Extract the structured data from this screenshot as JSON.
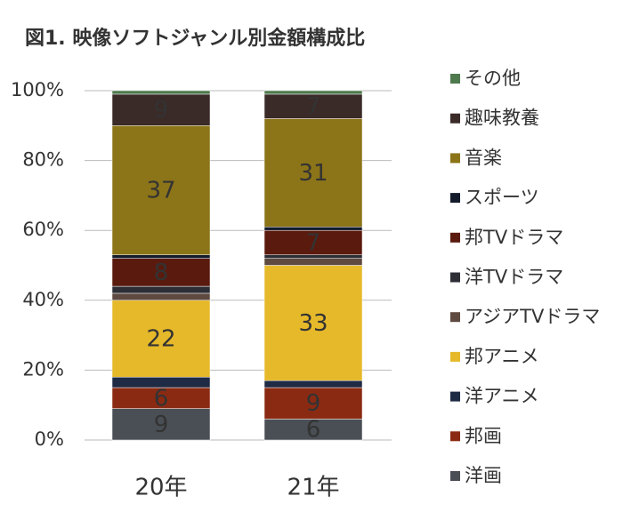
{
  "chart_data": {
    "type": "stacked-bar",
    "title": "図1. 映像ソフトジャンル別金額構成比",
    "categories": [
      "20年",
      "21年"
    ],
    "ylim": [
      0,
      100
    ],
    "yticks": [
      {
        "value": 0,
        "label": "0%"
      },
      {
        "value": 20,
        "label": "20%"
      },
      {
        "value": 40,
        "label": "40%"
      },
      {
        "value": 60,
        "label": "60%"
      },
      {
        "value": 80,
        "label": "80%"
      },
      {
        "value": 100,
        "label": "100%"
      }
    ],
    "grid": true,
    "legend": "right",
    "series": [
      {
        "name": "洋画",
        "color": "#4a4f55",
        "values": [
          9,
          6
        ]
      },
      {
        "name": "邦画",
        "color": "#8b2a12",
        "values": [
          6,
          9
        ]
      },
      {
        "name": "洋アニメ",
        "color": "#1f2a44",
        "values": [
          3,
          2
        ]
      },
      {
        "name": "邦アニメ",
        "color": "#e6b92a",
        "values": [
          22,
          33
        ]
      },
      {
        "name": "アジアTVドラマ",
        "color": "#5e4a40",
        "values": [
          2,
          2
        ]
      },
      {
        "name": "洋TVドラマ",
        "color": "#2d2e36",
        "values": [
          2,
          1
        ]
      },
      {
        "name": "邦TVドラマ",
        "color": "#5a1a0e",
        "values": [
          8,
          7
        ]
      },
      {
        "name": "スポーツ",
        "color": "#141c2c",
        "values": [
          1,
          1
        ]
      },
      {
        "name": "音楽",
        "color": "#8c7418",
        "values": [
          37,
          31
        ]
      },
      {
        "name": "趣味教養",
        "color": "#3a2a28",
        "values": [
          9,
          7
        ]
      },
      {
        "name": "その他",
        "color": "#4f7a4e",
        "values": [
          1,
          1
        ]
      }
    ]
  }
}
